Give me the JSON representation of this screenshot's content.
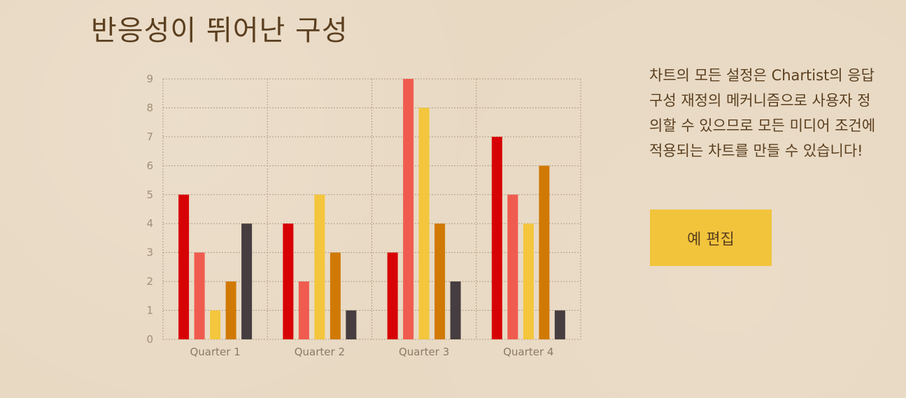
{
  "header": {
    "title": "반응성이 뛰어난 구성"
  },
  "description": "차트의 모든 설정은 Chartist의 응답 구성 재정의 메커니즘으로 사용자 정의할 수 있으므로 모든 미디어 조건에 적용되는 차트를 만들 수 있습니다!",
  "edit_button": {
    "label": "예 편집"
  },
  "colors": {
    "background": "#e8d9c3",
    "text": "#5b3f1f",
    "button": "#f2c43c",
    "grid": "#b39f84"
  },
  "chart_data": {
    "type": "bar",
    "categories": [
      "Quarter 1",
      "Quarter 2",
      "Quarter 3",
      "Quarter 4"
    ],
    "series": [
      {
        "values": [
          5,
          4,
          3,
          7
        ],
        "color": "#d70206"
      },
      {
        "values": [
          3,
          2,
          9,
          5
        ],
        "color": "#f05b4f"
      },
      {
        "values": [
          1,
          5,
          8,
          4
        ],
        "color": "#f4c63d"
      },
      {
        "values": [
          2,
          3,
          4,
          6
        ],
        "color": "#d17905"
      },
      {
        "values": [
          4,
          1,
          2,
          1
        ],
        "color": "#453d3f"
      }
    ],
    "y_ticks": [
      "0",
      "1",
      "2",
      "3",
      "4",
      "5",
      "6",
      "7",
      "8",
      "9"
    ],
    "ylim": [
      0,
      9
    ],
    "grid": true
  }
}
